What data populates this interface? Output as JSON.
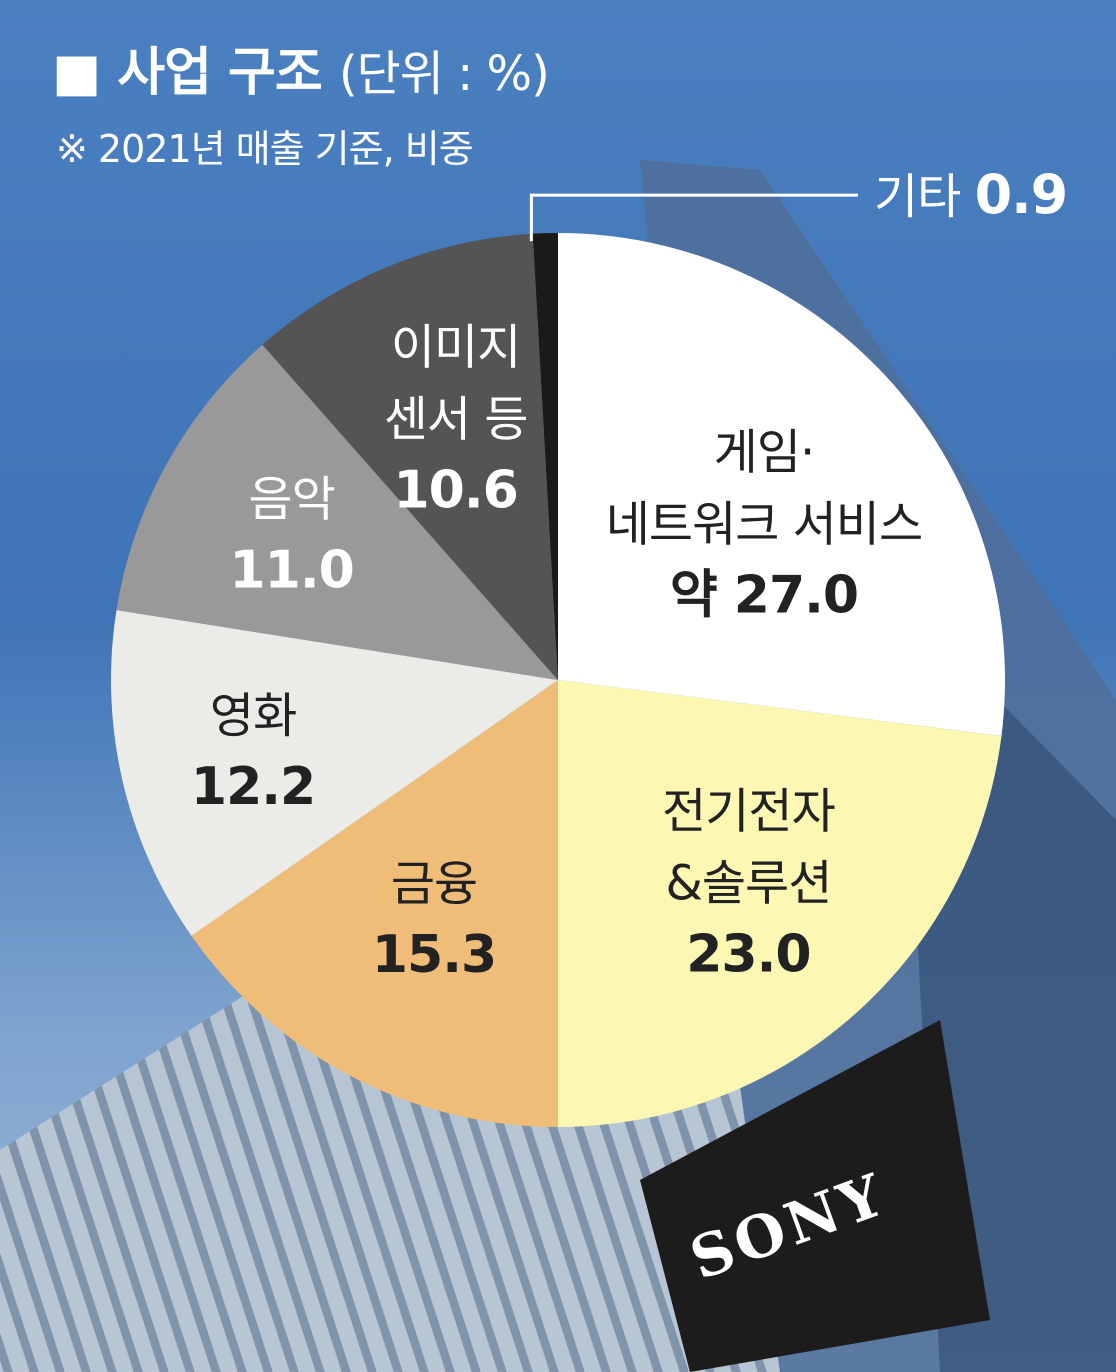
{
  "header": {
    "title": "■ 사업 구조",
    "unit": "(단위 : %)",
    "subtitle": "※ 2021년 매출 기준, 비중"
  },
  "background": {
    "logo_text": "SONY"
  },
  "chart_data": {
    "type": "pie",
    "title": "사업 구조",
    "unit": "%",
    "note": "※ 2021년 매출 기준, 비중",
    "slices": [
      {
        "name": "게임· 네트워크 서비스",
        "lines": [
          "게임·",
          "네트워크 서비스"
        ],
        "value": 27.0,
        "value_label": "약 27.0",
        "color": "#ffffff",
        "text_color": "#222222"
      },
      {
        "name": "전기전자 &솔루션",
        "lines": [
          "전기전자",
          "&솔루션"
        ],
        "value": 23.0,
        "value_label": "23.0",
        "color": "#fdf7b4",
        "text_color": "#222222"
      },
      {
        "name": "금융",
        "lines": [
          "금융"
        ],
        "value": 15.3,
        "value_label": "15.3",
        "color": "#f0bd78",
        "text_color": "#222222"
      },
      {
        "name": "영화",
        "lines": [
          "영화"
        ],
        "value": 12.2,
        "value_label": "12.2",
        "color": "#ebebe8",
        "text_color": "#222222"
      },
      {
        "name": "음악",
        "lines": [
          "음악"
        ],
        "value": 11.0,
        "value_label": "11.0",
        "color": "#999999",
        "text_color": "#ffffff"
      },
      {
        "name": "이미지 센서 등",
        "lines": [
          "이미지",
          "센서 등"
        ],
        "value": 10.6,
        "value_label": "10.6",
        "color": "#545454",
        "text_color": "#ffffff"
      },
      {
        "name": "기타",
        "lines": [
          "기타"
        ],
        "value": 0.9,
        "value_label": "0.9",
        "color": "#1a1a1a",
        "text_color": "#ffffff",
        "callout": true
      }
    ]
  }
}
